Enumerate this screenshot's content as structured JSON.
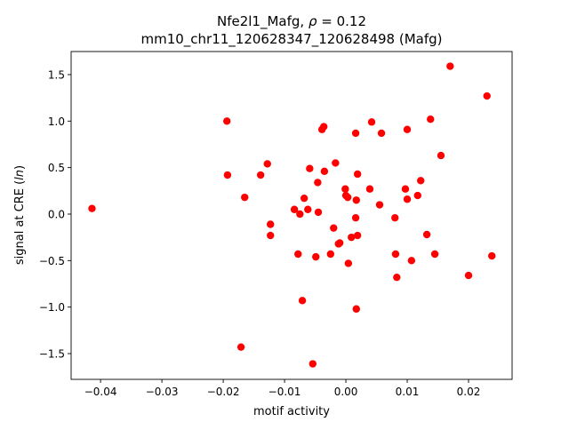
{
  "chart_data": {
    "type": "scatter",
    "title_line1_prefix": "Nfe2l1_Mafg, ",
    "title_rho_symbol": "ρ",
    "title_rho_value": " = 0.12",
    "title_line2": "mm10_chr11_120628347_120628498 (Mafg)",
    "xlabel": "motif activity",
    "ylabel_prefix": "signal at CRE (",
    "ylabel_italic": "ln",
    "ylabel_suffix": ")",
    "xlim": [
      -0.0448,
      0.0271
    ],
    "ylim": [
      -1.777,
      1.748
    ],
    "xticks": [
      -0.04,
      -0.03,
      -0.02,
      -0.01,
      0.0,
      0.01,
      0.02
    ],
    "xtick_labels": [
      "−0.04",
      "−0.03",
      "−0.02",
      "−0.01",
      "0.00",
      "0.01",
      "0.02"
    ],
    "yticks": [
      -1.5,
      -1.0,
      -0.5,
      0.0,
      0.5,
      1.0,
      1.5
    ],
    "ytick_labels": [
      "−1.5",
      "−1.0",
      "−0.5",
      "0.0",
      "0.5",
      "1.0",
      "1.5"
    ],
    "grid": false,
    "point_color": "#ff0000",
    "points": [
      [
        -0.0414,
        0.06
      ],
      [
        -0.0194,
        1.0
      ],
      [
        -0.0193,
        0.42
      ],
      [
        -0.0165,
        0.18
      ],
      [
        -0.0139,
        0.42
      ],
      [
        -0.0128,
        0.54
      ],
      [
        -0.0123,
        -0.11
      ],
      [
        -0.0123,
        -0.23
      ],
      [
        -0.0171,
        -1.43
      ],
      [
        -0.0078,
        -0.43
      ],
      [
        -0.0084,
        0.05
      ],
      [
        -0.0075,
        0.0
      ],
      [
        -0.0068,
        0.17
      ],
      [
        -0.0071,
        -0.93
      ],
      [
        -0.0062,
        0.05
      ],
      [
        -0.0059,
        0.49
      ],
      [
        -0.0049,
        -0.46
      ],
      [
        -0.0054,
        -1.61
      ],
      [
        -0.0046,
        0.34
      ],
      [
        -0.0045,
        0.02
      ],
      [
        -0.0039,
        0.91
      ],
      [
        -0.0036,
        0.94
      ],
      [
        -0.0035,
        0.46
      ],
      [
        -0.0025,
        -0.43
      ],
      [
        -0.002,
        -0.15
      ],
      [
        -0.0017,
        0.55
      ],
      [
        -0.0012,
        -0.32
      ],
      [
        -0.001,
        -0.31
      ],
      [
        -0.0001,
        0.27
      ],
      [
        0.0,
        0.2
      ],
      [
        0.0003,
        0.18
      ],
      [
        0.0004,
        -0.53
      ],
      [
        0.0009,
        -0.25
      ],
      [
        0.0016,
        0.87
      ],
      [
        0.0016,
        -0.04
      ],
      [
        0.0017,
        0.15
      ],
      [
        0.0019,
        0.43
      ],
      [
        0.0019,
        -0.23
      ],
      [
        0.0017,
        -1.02
      ],
      [
        0.0039,
        0.27
      ],
      [
        0.0042,
        0.99
      ],
      [
        0.0055,
        0.1
      ],
      [
        0.0058,
        0.87
      ],
      [
        0.008,
        -0.04
      ],
      [
        0.0081,
        -0.43
      ],
      [
        0.0083,
        -0.68
      ],
      [
        0.0097,
        0.27
      ],
      [
        0.01,
        0.91
      ],
      [
        0.01,
        0.16
      ],
      [
        0.0107,
        -0.5
      ],
      [
        0.0117,
        0.2
      ],
      [
        0.0122,
        0.36
      ],
      [
        0.0132,
        -0.22
      ],
      [
        0.0138,
        1.02
      ],
      [
        0.0145,
        -0.43
      ],
      [
        0.0155,
        0.63
      ],
      [
        0.017,
        1.59
      ],
      [
        0.02,
        -0.66
      ],
      [
        0.023,
        1.27
      ],
      [
        0.0238,
        -0.45
      ]
    ]
  }
}
